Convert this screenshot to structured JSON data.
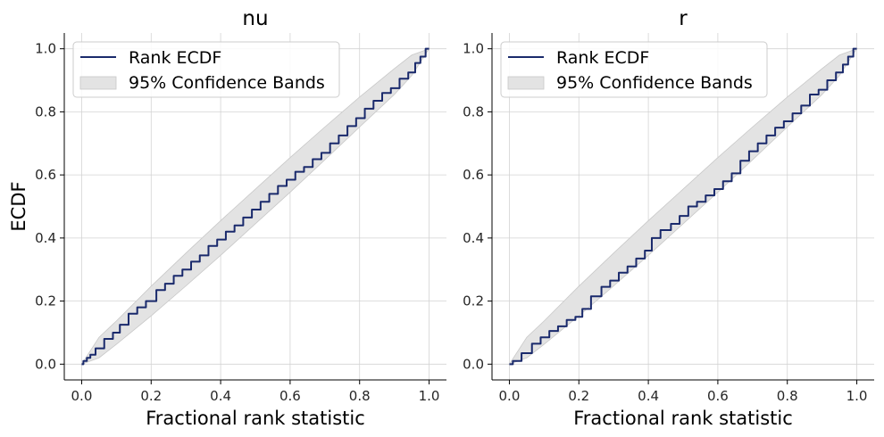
{
  "chart_data": [
    {
      "type": "line",
      "title": "nu",
      "xlabel": "Fractional rank statistic",
      "ylabel": "ECDF",
      "xlim": [
        -0.05,
        1.05
      ],
      "ylim": [
        -0.05,
        1.05
      ],
      "xticks": [
        "0.0",
        "0.2",
        "0.4",
        "0.6",
        "0.8",
        "1.0"
      ],
      "yticks": [
        "0.0",
        "0.2",
        "0.4",
        "0.6",
        "0.8",
        "1.0"
      ],
      "grid": true,
      "legend_position": "top-left",
      "legend": [
        "Rank ECDF",
        "95% Confidence Bands"
      ],
      "colors": {
        "ecdf": "#1a2a6c",
        "band": "#e3e3e3",
        "band_edge": "#c8c8c8"
      },
      "band": {
        "x": [
          0,
          0.05,
          0.1,
          0.2,
          0.3,
          0.4,
          0.5,
          0.6,
          0.7,
          0.8,
          0.9,
          0.95,
          1.0
        ],
        "lower": [
          0,
          0.02,
          0.063,
          0.153,
          0.248,
          0.345,
          0.445,
          0.545,
          0.648,
          0.752,
          0.855,
          0.915,
          1.0
        ],
        "upper": [
          0,
          0.085,
          0.137,
          0.247,
          0.352,
          0.455,
          0.555,
          0.655,
          0.752,
          0.847,
          0.937,
          0.98,
          1.0
        ]
      },
      "ecdf": {
        "x": [
          0,
          0.01,
          0.02,
          0.03,
          0.05,
          0.08,
          0.1,
          0.12,
          0.15,
          0.17,
          0.2,
          0.23,
          0.25,
          0.28,
          0.3,
          0.33,
          0.35,
          0.38,
          0.4,
          0.43,
          0.45,
          0.48,
          0.5,
          0.53,
          0.55,
          0.58,
          0.6,
          0.63,
          0.65,
          0.68,
          0.7,
          0.73,
          0.75,
          0.78,
          0.8,
          0.83,
          0.85,
          0.88,
          0.9,
          0.93,
          0.95,
          0.97,
          0.98,
          1.0
        ],
        "y": [
          0,
          0.01,
          0.02,
          0.03,
          0.05,
          0.08,
          0.1,
          0.125,
          0.16,
          0.18,
          0.2,
          0.235,
          0.255,
          0.28,
          0.3,
          0.325,
          0.345,
          0.375,
          0.395,
          0.42,
          0.44,
          0.465,
          0.49,
          0.515,
          0.54,
          0.565,
          0.585,
          0.61,
          0.625,
          0.65,
          0.67,
          0.7,
          0.725,
          0.755,
          0.78,
          0.81,
          0.835,
          0.86,
          0.875,
          0.905,
          0.925,
          0.955,
          0.975,
          1.0
        ]
      }
    },
    {
      "type": "line",
      "title": "r",
      "xlabel": "Fractional rank statistic",
      "ylabel": "",
      "xlim": [
        -0.05,
        1.05
      ],
      "ylim": [
        -0.05,
        1.05
      ],
      "xticks": [
        "0.0",
        "0.2",
        "0.4",
        "0.6",
        "0.8",
        "1.0"
      ],
      "yticks": [
        "0.0",
        "0.2",
        "0.4",
        "0.6",
        "0.8",
        "1.0"
      ],
      "grid": true,
      "legend_position": "top-left",
      "legend": [
        "Rank ECDF",
        "95% Confidence Bands"
      ],
      "colors": {
        "ecdf": "#1a2a6c",
        "band": "#e3e3e3",
        "band_edge": "#c8c8c8"
      },
      "band": {
        "x": [
          0,
          0.05,
          0.1,
          0.2,
          0.3,
          0.4,
          0.5,
          0.6,
          0.7,
          0.8,
          0.9,
          0.95,
          1.0
        ],
        "lower": [
          0,
          0.02,
          0.063,
          0.153,
          0.248,
          0.345,
          0.445,
          0.545,
          0.648,
          0.752,
          0.855,
          0.915,
          1.0
        ],
        "upper": [
          0,
          0.085,
          0.137,
          0.247,
          0.352,
          0.455,
          0.555,
          0.655,
          0.752,
          0.847,
          0.937,
          0.98,
          1.0
        ]
      },
      "ecdf": {
        "x": [
          0,
          0.02,
          0.05,
          0.08,
          0.1,
          0.13,
          0.15,
          0.18,
          0.2,
          0.22,
          0.25,
          0.28,
          0.3,
          0.33,
          0.35,
          0.38,
          0.4,
          0.42,
          0.45,
          0.48,
          0.5,
          0.53,
          0.55,
          0.58,
          0.6,
          0.63,
          0.65,
          0.68,
          0.7,
          0.73,
          0.75,
          0.78,
          0.8,
          0.83,
          0.85,
          0.88,
          0.9,
          0.93,
          0.95,
          0.97,
          0.98,
          1.0
        ],
        "y": [
          0,
          0.01,
          0.035,
          0.065,
          0.085,
          0.105,
          0.12,
          0.14,
          0.15,
          0.175,
          0.215,
          0.245,
          0.265,
          0.29,
          0.31,
          0.335,
          0.36,
          0.4,
          0.425,
          0.445,
          0.47,
          0.5,
          0.515,
          0.535,
          0.555,
          0.58,
          0.605,
          0.645,
          0.675,
          0.7,
          0.725,
          0.75,
          0.77,
          0.795,
          0.82,
          0.855,
          0.87,
          0.9,
          0.925,
          0.95,
          0.975,
          1.0
        ]
      }
    }
  ]
}
